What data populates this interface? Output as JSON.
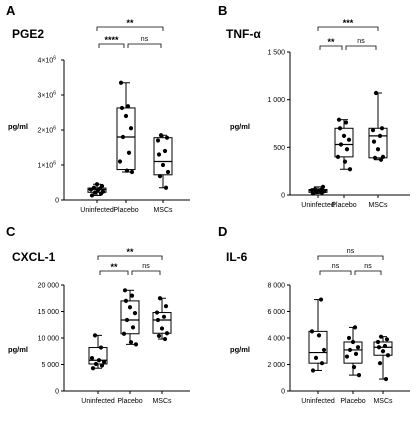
{
  "chart_data": [
    {
      "letter": "A",
      "type": "box",
      "title": "PGE2",
      "ylabel": "pg/ml",
      "categories": [
        "Uninfected",
        "Placebo",
        "MSCs"
      ],
      "ylim": [
        0,
        4000000
      ],
      "yticks": [
        {
          "v": 0,
          "label": "0",
          "exp": ""
        },
        {
          "v": 1000000,
          "label": "1×10",
          "exp": "6"
        },
        {
          "v": 2000000,
          "label": "2×10",
          "exp": "6"
        },
        {
          "v": 3000000,
          "label": "3×10",
          "exp": "6"
        },
        {
          "v": 4000000,
          "label": "4×10",
          "exp": "6"
        }
      ],
      "boxes": [
        {
          "min": 130000,
          "q1": 220000,
          "median": 300000,
          "q3": 340000,
          "max": 450000
        },
        {
          "min": 800000,
          "q1": 870000,
          "median": 1800000,
          "q3": 2630000,
          "max": 3350000
        },
        {
          "min": 350000,
          "q1": 720000,
          "median": 1100000,
          "q3": 1780000,
          "max": 1850000
        }
      ],
      "points": [
        [
          130000,
          180000,
          210000,
          240000,
          280000,
          300000,
          330000,
          350000,
          400000,
          450000
        ],
        [
          800000,
          840000,
          1100000,
          1350000,
          1800000,
          2050000,
          2400000,
          2630000,
          2680000,
          3350000
        ],
        [
          350000,
          680000,
          800000,
          1000000,
          1300000,
          1400000,
          1700000,
          1780000,
          1850000
        ]
      ],
      "brackets": [
        {
          "from": 0,
          "to": 1,
          "level": 0,
          "label": "****"
        },
        {
          "from": 1,
          "to": 2,
          "level": 0,
          "label": "ns"
        },
        {
          "from": 0,
          "to": 2,
          "level": 1,
          "label": "**"
        }
      ]
    },
    {
      "letter": "B",
      "type": "box",
      "title": "TNF-α",
      "ylabel": "pg/ml",
      "categories": [
        "Uninfected",
        "Placebo",
        "MSCs"
      ],
      "ylim": [
        0,
        1500
      ],
      "yticks": [
        {
          "v": 0,
          "label": "0",
          "exp": ""
        },
        {
          "v": 500,
          "label": "500",
          "exp": ""
        },
        {
          "v": 1000,
          "label": "1 000",
          "exp": ""
        },
        {
          "v": 1500,
          "label": "1 500",
          "exp": ""
        }
      ],
      "boxes": [
        {
          "min": 15,
          "q1": 28,
          "median": 45,
          "q3": 58,
          "max": 85
        },
        {
          "min": 270,
          "q1": 400,
          "median": 530,
          "q3": 700,
          "max": 790
        },
        {
          "min": 370,
          "q1": 390,
          "median": 620,
          "q3": 700,
          "max": 1070
        }
      ],
      "points": [
        [
          15,
          25,
          30,
          40,
          45,
          50,
          55,
          60,
          85
        ],
        [
          270,
          350,
          400,
          480,
          530,
          580,
          620,
          700,
          760,
          790
        ],
        [
          370,
          390,
          400,
          480,
          560,
          620,
          680,
          700,
          1070
        ]
      ],
      "brackets": [
        {
          "from": 0,
          "to": 1,
          "level": 0,
          "label": "**"
        },
        {
          "from": 1,
          "to": 2,
          "level": 0,
          "label": "ns"
        },
        {
          "from": 0,
          "to": 2,
          "level": 1,
          "label": "***"
        }
      ]
    },
    {
      "letter": "C",
      "type": "box",
      "title": "CXCL-1",
      "ylabel": "pg/ml",
      "categories": [
        "Uninfected",
        "Placebo",
        "MSCs"
      ],
      "ylim": [
        0,
        20000
      ],
      "yticks": [
        {
          "v": 0,
          "label": "0",
          "exp": ""
        },
        {
          "v": 5000,
          "label": "5 000",
          "exp": ""
        },
        {
          "v": 10000,
          "label": "10 000",
          "exp": ""
        },
        {
          "v": 15000,
          "label": "15 000",
          "exp": ""
        },
        {
          "v": 20000,
          "label": "20 000",
          "exp": ""
        }
      ],
      "boxes": [
        {
          "min": 4300,
          "q1": 5100,
          "median": 5800,
          "q3": 8200,
          "max": 10500
        },
        {
          "min": 8800,
          "q1": 10800,
          "median": 13400,
          "q3": 17000,
          "max": 19000
        },
        {
          "min": 9800,
          "q1": 10900,
          "median": 13400,
          "q3": 14800,
          "max": 17500
        }
      ],
      "points": [
        [
          4300,
          4800,
          5100,
          5500,
          5800,
          6200,
          8200,
          10500
        ],
        [
          8800,
          9200,
          10800,
          12000,
          13400,
          14700,
          15800,
          17000,
          18000,
          19000
        ],
        [
          9800,
          10400,
          10900,
          11800,
          13400,
          14000,
          14800,
          16000,
          17500
        ]
      ],
      "brackets": [
        {
          "from": 0,
          "to": 1,
          "level": 0,
          "label": "**"
        },
        {
          "from": 1,
          "to": 2,
          "level": 0,
          "label": "ns"
        },
        {
          "from": 0,
          "to": 2,
          "level": 1,
          "label": "**"
        }
      ]
    },
    {
      "letter": "D",
      "type": "box",
      "title": "IL-6",
      "ylabel": "pg/ml",
      "categories": [
        "Uninfected",
        "Placebo",
        "MSCs"
      ],
      "ylim": [
        0,
        8000
      ],
      "yticks": [
        {
          "v": 0,
          "label": "0",
          "exp": ""
        },
        {
          "v": 2000,
          "label": "2 000",
          "exp": ""
        },
        {
          "v": 4000,
          "label": "4 000",
          "exp": ""
        },
        {
          "v": 6000,
          "label": "6 000",
          "exp": ""
        },
        {
          "v": 8000,
          "label": "8 000",
          "exp": ""
        }
      ],
      "boxes": [
        {
          "min": 1550,
          "q1": 2100,
          "median": 2900,
          "q3": 4500,
          "max": 6900
        },
        {
          "min": 1200,
          "q1": 2100,
          "median": 3100,
          "q3": 3700,
          "max": 4800
        },
        {
          "min": 900,
          "q1": 2700,
          "median": 3300,
          "q3": 3700,
          "max": 4100
        }
      ],
      "points": [
        [
          1550,
          2100,
          2500,
          3100,
          4200,
          4500,
          6900
        ],
        [
          1200,
          1800,
          2600,
          2800,
          3100,
          3300,
          3700,
          4000,
          4800
        ],
        [
          900,
          2100,
          2700,
          3000,
          3300,
          3400,
          3700,
          3900,
          4100
        ]
      ],
      "brackets": [
        {
          "from": 0,
          "to": 1,
          "level": 0,
          "label": "ns"
        },
        {
          "from": 1,
          "to": 2,
          "level": 0,
          "label": "ns"
        },
        {
          "from": 0,
          "to": 2,
          "level": 1,
          "label": "ns"
        }
      ]
    }
  ]
}
